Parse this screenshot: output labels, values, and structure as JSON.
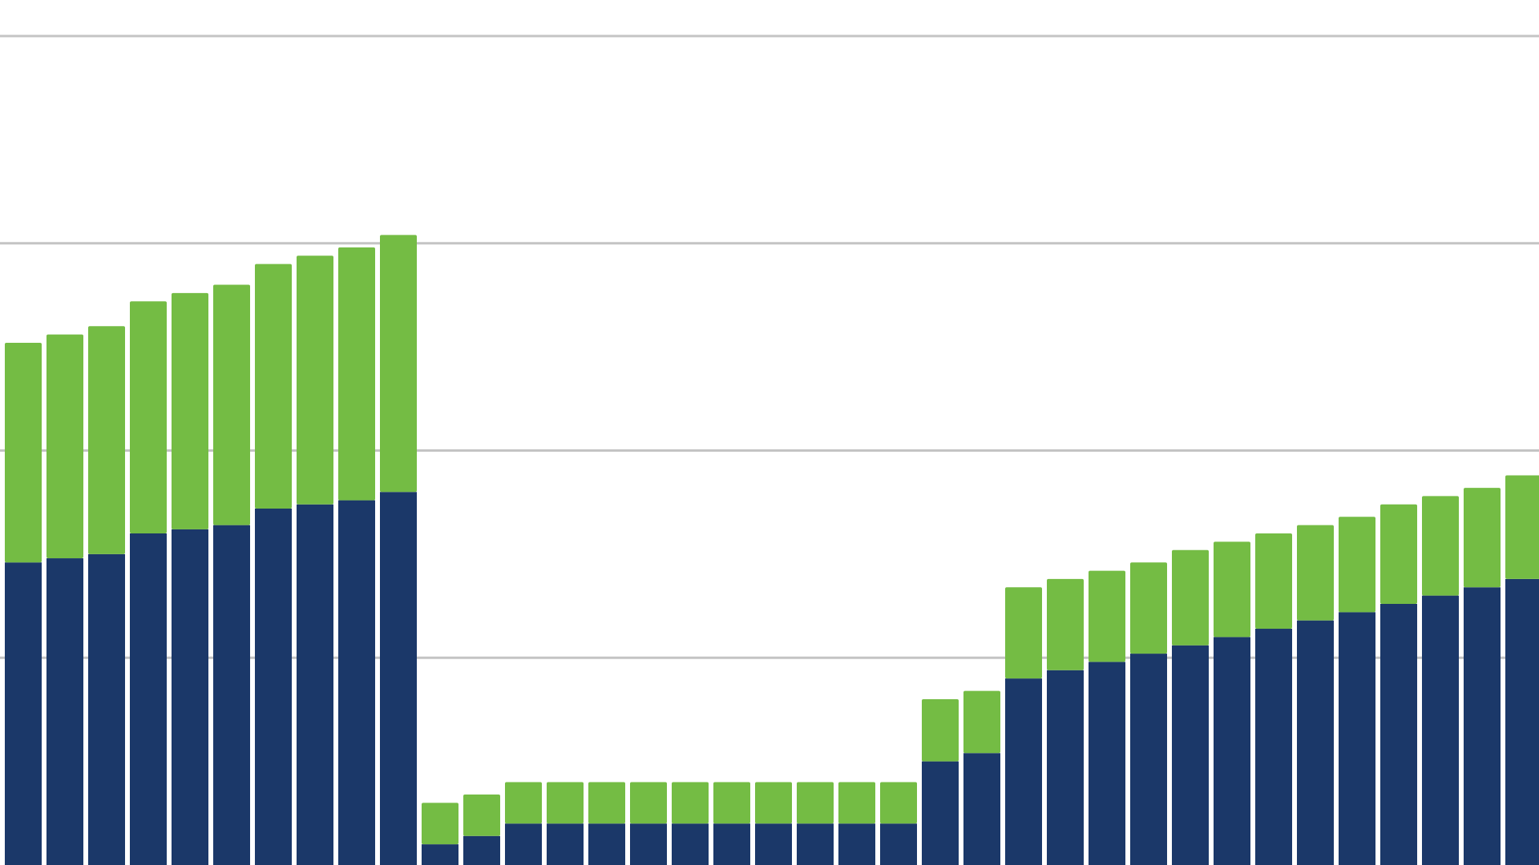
{
  "chart_data": {
    "type": "bar",
    "stacked": true,
    "grid": true,
    "legend": "none",
    "ylim": [
      0,
      100
    ],
    "gridlines": [
      0,
      25,
      50,
      75,
      100
    ],
    "series": [
      {
        "color": "#1b3869",
        "values": [
          36.5,
          37,
          37.5,
          40,
          40.5,
          41,
          43,
          43.5,
          44,
          45,
          2.5,
          3.5,
          5,
          5,
          5,
          5,
          5,
          5,
          5,
          5,
          5,
          5,
          12.5,
          13.5,
          22.5,
          23.5,
          24.5,
          25.5,
          26.5,
          27.5,
          28.5,
          29.5,
          30.5,
          31.5,
          32.5,
          33.5,
          34.5
        ]
      },
      {
        "color": "#74bc44",
        "values": [
          26.5,
          27,
          27.5,
          28,
          28.5,
          29,
          29.5,
          30,
          30.5,
          31,
          5,
          5,
          5,
          5,
          5,
          5,
          5,
          5,
          5,
          5,
          5,
          5,
          7.5,
          7.5,
          11,
          11,
          11,
          11,
          11.5,
          11.5,
          11.5,
          11.5,
          11.5,
          12,
          12,
          12,
          12.5
        ]
      }
    ]
  }
}
